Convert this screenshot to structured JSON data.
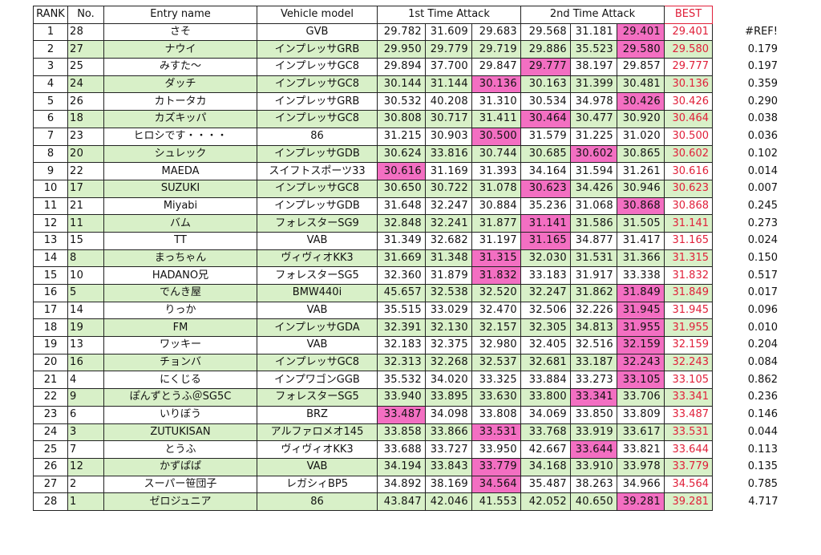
{
  "headers": {
    "rank": "RANK",
    "no": "No.",
    "entry": "Entry name",
    "vehicle": "Vehicle model",
    "ta1": "1st Time Attack",
    "ta2": "2nd Time Attack",
    "best": "BEST"
  },
  "rows": [
    {
      "rank": "1",
      "no": "28",
      "name": "さそ",
      "vehicle": "GVB",
      "t1": [
        "29.782",
        "31.609",
        "29.683"
      ],
      "t2": [
        "29.568",
        "31.181",
        "29.401"
      ],
      "best": "29.401",
      "diff": "#REF!",
      "pink": [
        5
      ]
    },
    {
      "rank": "2",
      "no": "27",
      "name": "ナウイ",
      "vehicle": "インプレッサGRB",
      "t1": [
        "29.950",
        "29.779",
        "29.719"
      ],
      "t2": [
        "29.886",
        "35.523",
        "29.580"
      ],
      "best": "29.580",
      "diff": "0.179",
      "pink": [
        5
      ]
    },
    {
      "rank": "3",
      "no": "25",
      "name": "みすた〜",
      "vehicle": "インプレッサGC8",
      "t1": [
        "29.894",
        "37.700",
        "29.847"
      ],
      "t2": [
        "29.777",
        "38.197",
        "29.857"
      ],
      "best": "29.777",
      "diff": "0.197",
      "pink": [
        3
      ]
    },
    {
      "rank": "4",
      "no": "24",
      "name": "ダッチ",
      "vehicle": "インプレッサGC8",
      "t1": [
        "30.144",
        "31.144",
        "30.136"
      ],
      "t2": [
        "30.163",
        "31.399",
        "30.481"
      ],
      "best": "30.136",
      "diff": "0.359",
      "pink": [
        2
      ]
    },
    {
      "rank": "5",
      "no": "26",
      "name": "カトータカ",
      "vehicle": "インプレッサGRB",
      "t1": [
        "30.532",
        "40.208",
        "31.310"
      ],
      "t2": [
        "30.534",
        "34.978",
        "30.426"
      ],
      "best": "30.426",
      "diff": "0.290",
      "pink": [
        5
      ]
    },
    {
      "rank": "6",
      "no": "18",
      "name": "カズキッパ",
      "vehicle": "インプレッサGC8",
      "t1": [
        "30.808",
        "30.717",
        "31.411"
      ],
      "t2": [
        "30.464",
        "30.477",
        "30.920"
      ],
      "best": "30.464",
      "diff": "0.038",
      "pink": [
        3
      ]
    },
    {
      "rank": "7",
      "no": "23",
      "name": "ヒロシです・・・・",
      "vehicle": "86",
      "t1": [
        "31.215",
        "30.903",
        "30.500"
      ],
      "t2": [
        "31.579",
        "31.225",
        "31.020"
      ],
      "best": "30.500",
      "diff": "0.036",
      "pink": [
        2
      ]
    },
    {
      "rank": "8",
      "no": "20",
      "name": "シュレック",
      "vehicle": "インプレッサGDB",
      "t1": [
        "30.624",
        "33.816",
        "30.744"
      ],
      "t2": [
        "30.685",
        "30.602",
        "30.865"
      ],
      "best": "30.602",
      "diff": "0.102",
      "pink": [
        4
      ]
    },
    {
      "rank": "9",
      "no": "22",
      "name": "MAEDA",
      "vehicle": "スイフトスポーツ33",
      "t1": [
        "30.616",
        "31.169",
        "31.393"
      ],
      "t2": [
        "34.164",
        "31.594",
        "31.261"
      ],
      "best": "30.616",
      "diff": "0.014",
      "pink": [
        0
      ]
    },
    {
      "rank": "10",
      "no": "17",
      "name": "SUZUKI",
      "vehicle": "インプレッサGC8",
      "t1": [
        "30.650",
        "30.722",
        "31.078"
      ],
      "t2": [
        "30.623",
        "34.426",
        "30.946"
      ],
      "best": "30.623",
      "diff": "0.007",
      "pink": [
        3
      ]
    },
    {
      "rank": "11",
      "no": "21",
      "name": "Miyabi",
      "vehicle": "インプレッサGDB",
      "t1": [
        "31.648",
        "32.247",
        "30.884"
      ],
      "t2": [
        "35.236",
        "31.068",
        "30.868"
      ],
      "best": "30.868",
      "diff": "0.245",
      "pink": [
        5
      ]
    },
    {
      "rank": "12",
      "no": "11",
      "name": "バム",
      "vehicle": "フォレスターSG9",
      "t1": [
        "32.848",
        "32.241",
        "31.877"
      ],
      "t2": [
        "31.141",
        "31.586",
        "31.505"
      ],
      "best": "31.141",
      "diff": "0.273",
      "pink": [
        3
      ]
    },
    {
      "rank": "13",
      "no": "15",
      "name": "TT",
      "vehicle": "VAB",
      "t1": [
        "31.349",
        "32.682",
        "31.197"
      ],
      "t2": [
        "31.165",
        "34.877",
        "31.417"
      ],
      "best": "31.165",
      "diff": "0.024",
      "pink": [
        3
      ]
    },
    {
      "rank": "14",
      "no": "8",
      "name": "まっちゃん",
      "vehicle": "ヴィヴィオKK3",
      "t1": [
        "31.669",
        "31.348",
        "31.315"
      ],
      "t2": [
        "32.030",
        "31.531",
        "31.366"
      ],
      "best": "31.315",
      "diff": "0.150",
      "pink": [
        2
      ]
    },
    {
      "rank": "15",
      "no": "10",
      "name": "HADANO兄",
      "vehicle": "フォレスターSG5",
      "t1": [
        "32.360",
        "31.879",
        "31.832"
      ],
      "t2": [
        "33.183",
        "31.917",
        "33.338"
      ],
      "best": "31.832",
      "diff": "0.517",
      "pink": [
        2
      ]
    },
    {
      "rank": "16",
      "no": "5",
      "name": "でんき屋",
      "vehicle": "BMW440i",
      "t1": [
        "45.657",
        "32.538",
        "32.520"
      ],
      "t2": [
        "32.247",
        "31.862",
        "31.849"
      ],
      "best": "31.849",
      "diff": "0.017",
      "pink": [
        5
      ]
    },
    {
      "rank": "17",
      "no": "14",
      "name": "りっか",
      "vehicle": "VAB",
      "t1": [
        "35.515",
        "33.029",
        "32.470"
      ],
      "t2": [
        "32.506",
        "32.226",
        "31.945"
      ],
      "best": "31.945",
      "diff": "0.096",
      "pink": [
        5
      ]
    },
    {
      "rank": "18",
      "no": "19",
      "name": "FM",
      "vehicle": "インプレッサGDA",
      "t1": [
        "32.391",
        "32.130",
        "32.157"
      ],
      "t2": [
        "32.305",
        "34.813",
        "31.955"
      ],
      "best": "31.955",
      "diff": "0.010",
      "pink": [
        5
      ]
    },
    {
      "rank": "19",
      "no": "13",
      "name": "ワッキー",
      "vehicle": "VAB",
      "t1": [
        "32.183",
        "32.375",
        "32.980"
      ],
      "t2": [
        "32.405",
        "32.516",
        "32.159"
      ],
      "best": "32.159",
      "diff": "0.204",
      "pink": [
        5
      ]
    },
    {
      "rank": "20",
      "no": "16",
      "name": "チョンバ",
      "vehicle": "インプレッサGC8",
      "t1": [
        "32.313",
        "32.268",
        "32.537"
      ],
      "t2": [
        "32.681",
        "33.187",
        "32.243"
      ],
      "best": "32.243",
      "diff": "0.084",
      "pink": [
        5
      ]
    },
    {
      "rank": "21",
      "no": "4",
      "name": "にくじる",
      "vehicle": "インプワゴンGGB",
      "t1": [
        "35.532",
        "34.020",
        "33.325"
      ],
      "t2": [
        "33.884",
        "33.273",
        "33.105"
      ],
      "best": "33.105",
      "diff": "0.862",
      "pink": [
        5
      ]
    },
    {
      "rank": "22",
      "no": "9",
      "name": "ぽんずとうふ＠SG5C",
      "vehicle": "フォレスターSG5",
      "t1": [
        "33.940",
        "33.895",
        "33.630"
      ],
      "t2": [
        "33.800",
        "33.341",
        "33.706"
      ],
      "best": "33.341",
      "diff": "0.236",
      "pink": [
        4
      ]
    },
    {
      "rank": "23",
      "no": "6",
      "name": "いりぼう",
      "vehicle": "BRZ",
      "t1": [
        "33.487",
        "34.098",
        "33.808"
      ],
      "t2": [
        "34.069",
        "33.850",
        "33.809"
      ],
      "best": "33.487",
      "diff": "0.146",
      "pink": [
        0
      ]
    },
    {
      "rank": "24",
      "no": "3",
      "name": "ZUTUKISAN",
      "vehicle": "アルファロメオ145",
      "t1": [
        "33.858",
        "33.866",
        "33.531"
      ],
      "t2": [
        "33.768",
        "33.919",
        "33.617"
      ],
      "best": "33.531",
      "diff": "0.044",
      "pink": [
        2
      ]
    },
    {
      "rank": "25",
      "no": "7",
      "name": "とうふ",
      "vehicle": "ヴィヴィオKK3",
      "t1": [
        "33.688",
        "33.727",
        "33.950"
      ],
      "t2": [
        "42.667",
        "33.644",
        "33.821"
      ],
      "best": "33.644",
      "diff": "0.113",
      "pink": [
        4
      ]
    },
    {
      "rank": "26",
      "no": "12",
      "name": "かずぱぱ",
      "vehicle": "VAB",
      "t1": [
        "34.194",
        "33.843",
        "33.779"
      ],
      "t2": [
        "34.168",
        "33.910",
        "33.978"
      ],
      "best": "33.779",
      "diff": "0.135",
      "pink": [
        2
      ]
    },
    {
      "rank": "27",
      "no": "2",
      "name": "スーパー笹団子",
      "vehicle": "レガシィBP5",
      "t1": [
        "34.892",
        "38.169",
        "34.564"
      ],
      "t2": [
        "35.487",
        "38.263",
        "34.966"
      ],
      "best": "34.564",
      "diff": "0.785",
      "pink": [
        2
      ]
    },
    {
      "rank": "28",
      "no": "1",
      "name": "ゼロジュニア",
      "vehicle": "86",
      "t1": [
        "43.847",
        "42.046",
        "41.553"
      ],
      "t2": [
        "42.052",
        "40.650",
        "39.281"
      ],
      "best": "39.281",
      "diff": "4.717",
      "pink": [
        5
      ]
    }
  ]
}
